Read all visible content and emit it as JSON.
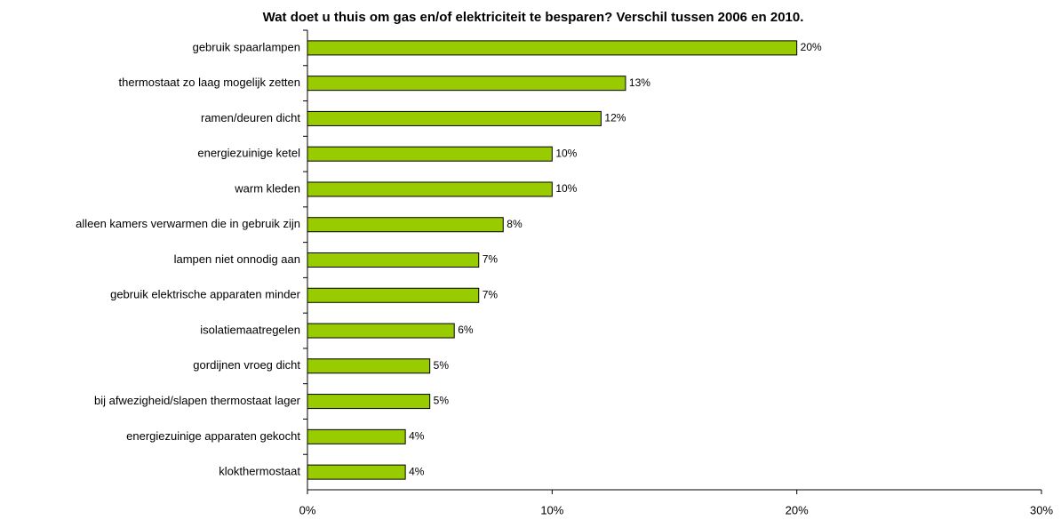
{
  "chart_data": {
    "type": "barh",
    "title": "Wat doet u thuis om gas en/of elektriciteit te besparen? Verschil tussen 2006 en 2010.",
    "categories": [
      "gebruik spaarlampen",
      "thermostaat zo laag mogelijk zetten",
      "ramen/deuren dicht",
      "energiezuinige ketel",
      "warm kleden",
      "alleen kamers verwarmen die in gebruik zijn",
      "lampen niet onnodig aan",
      "gebruik elektrische apparaten minder",
      "isolatiemaatregelen",
      "gordijnen vroeg dicht",
      "bij afwezigheid/slapen thermostaat lager",
      "energiezuinige apparaten gekocht",
      "klokthermostaat"
    ],
    "values": [
      20,
      13,
      12,
      10,
      10,
      8,
      7,
      7,
      6,
      5,
      5,
      4,
      4
    ],
    "value_labels": [
      "20%",
      "13%",
      "12%",
      "10%",
      "10%",
      "8%",
      "7%",
      "7%",
      "6%",
      "5%",
      "5%",
      "4%",
      "4%"
    ],
    "color": "#99cc00",
    "xlim": [
      0,
      30
    ],
    "xticks": [
      {
        "value": 0,
        "label": "0%"
      },
      {
        "value": 10,
        "label": "10%"
      },
      {
        "value": 20,
        "label": "20%"
      },
      {
        "value": 30,
        "label": "30%"
      }
    ],
    "grid": false
  }
}
